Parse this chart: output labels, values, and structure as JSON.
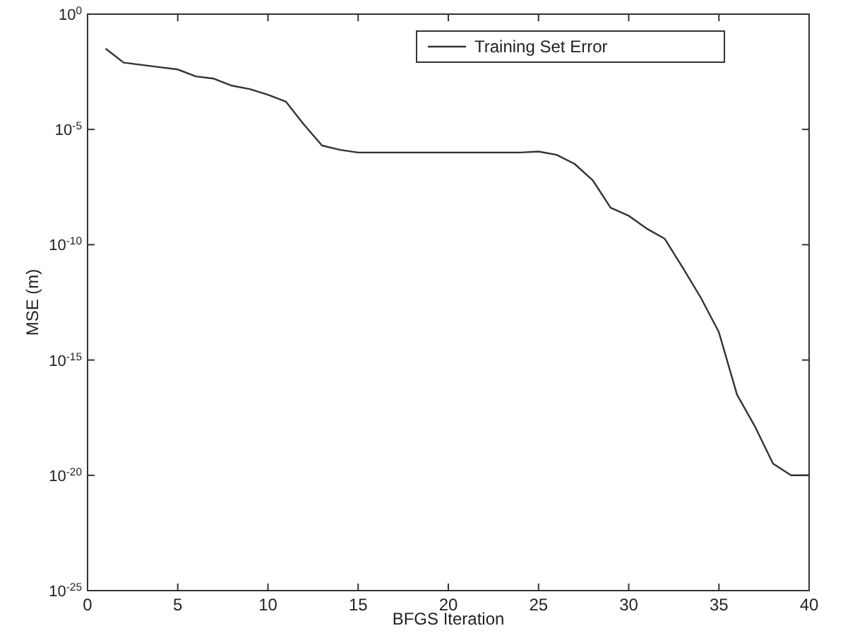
{
  "chart_data": {
    "type": "line",
    "xlabel": "BFGS Iteration",
    "ylabel": "MSE (m)",
    "log": "y",
    "legend": "top right",
    "grid": false,
    "marker": "none",
    "line_style": "solid",
    "x": [
      1,
      2,
      3,
      4,
      5,
      6,
      7,
      8,
      9,
      10,
      11,
      12,
      13,
      14,
      15,
      16,
      17,
      18,
      19,
      20,
      21,
      22,
      23,
      24,
      25,
      26,
      27,
      28,
      29,
      30,
      31,
      32,
      33,
      34,
      35,
      36,
      37,
      38,
      39,
      40
    ],
    "series": [
      {
        "name": "Training Set Error",
        "color": "#333333",
        "values": [
          0.032,
          0.0079,
          0.0063,
          0.005,
          0.004,
          0.002,
          0.0016,
          0.00079,
          0.00056,
          0.00032,
          0.00016,
          1.6e-05,
          2e-06,
          1.3e-06,
          1e-06,
          1e-06,
          1e-06,
          1e-06,
          1e-06,
          1e-06,
          1e-06,
          1e-06,
          1e-06,
          1e-06,
          1.1e-06,
          7.9e-07,
          3.2e-07,
          6.3e-08,
          4e-09,
          1.8e-09,
          5e-10,
          1.8e-10,
          1e-11,
          5e-13,
          1.6e-14,
          3.2e-17,
          1.3e-18,
          3.2e-20,
          1e-20,
          1e-20
        ]
      }
    ],
    "xlim": [
      0,
      40
    ],
    "xticks": [
      0,
      5,
      10,
      15,
      20,
      25,
      30,
      35,
      40
    ],
    "ylim": [
      1e-25,
      1
    ],
    "yticks": [
      {
        "value": 1e-25,
        "label": "10$^{-25}$"
      },
      {
        "value": 1e-20,
        "label": "10$^{-20}$"
      },
      {
        "value": 1e-15,
        "label": "10$^{-15}$"
      },
      {
        "value": 1e-10,
        "label": "10$^{-10}$"
      },
      {
        "value": 1e-05,
        "label": "10$^{-5}$"
      },
      {
        "value": 1,
        "label": "10$^{0}$"
      }
    ]
  }
}
